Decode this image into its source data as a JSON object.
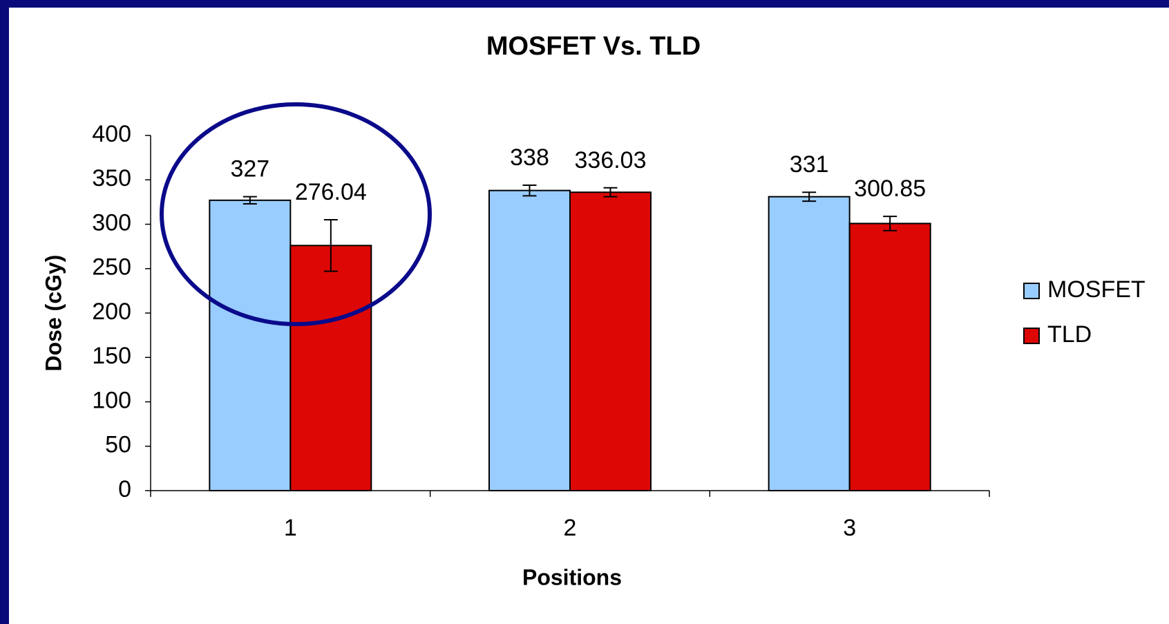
{
  "chart_data": {
    "type": "bar",
    "title": "MOSFET Vs. TLD",
    "x_label": "Positions",
    "y_label": "Dose (cGy)",
    "categories": [
      "1",
      "2",
      "3"
    ],
    "series": [
      {
        "name": "MOSFET",
        "color": "#99ccff",
        "values": [
          327,
          338,
          331
        ],
        "errors": [
          4,
          6,
          5
        ]
      },
      {
        "name": "TLD",
        "color": "#dd0806",
        "values": [
          276.04,
          336.03,
          300.85
        ],
        "errors": [
          29,
          5,
          8
        ]
      }
    ],
    "ylim": [
      0,
      400
    ],
    "yticks": [
      0,
      50,
      100,
      150,
      200,
      250,
      300,
      350,
      400
    ],
    "grid": false,
    "legend": "right"
  }
}
